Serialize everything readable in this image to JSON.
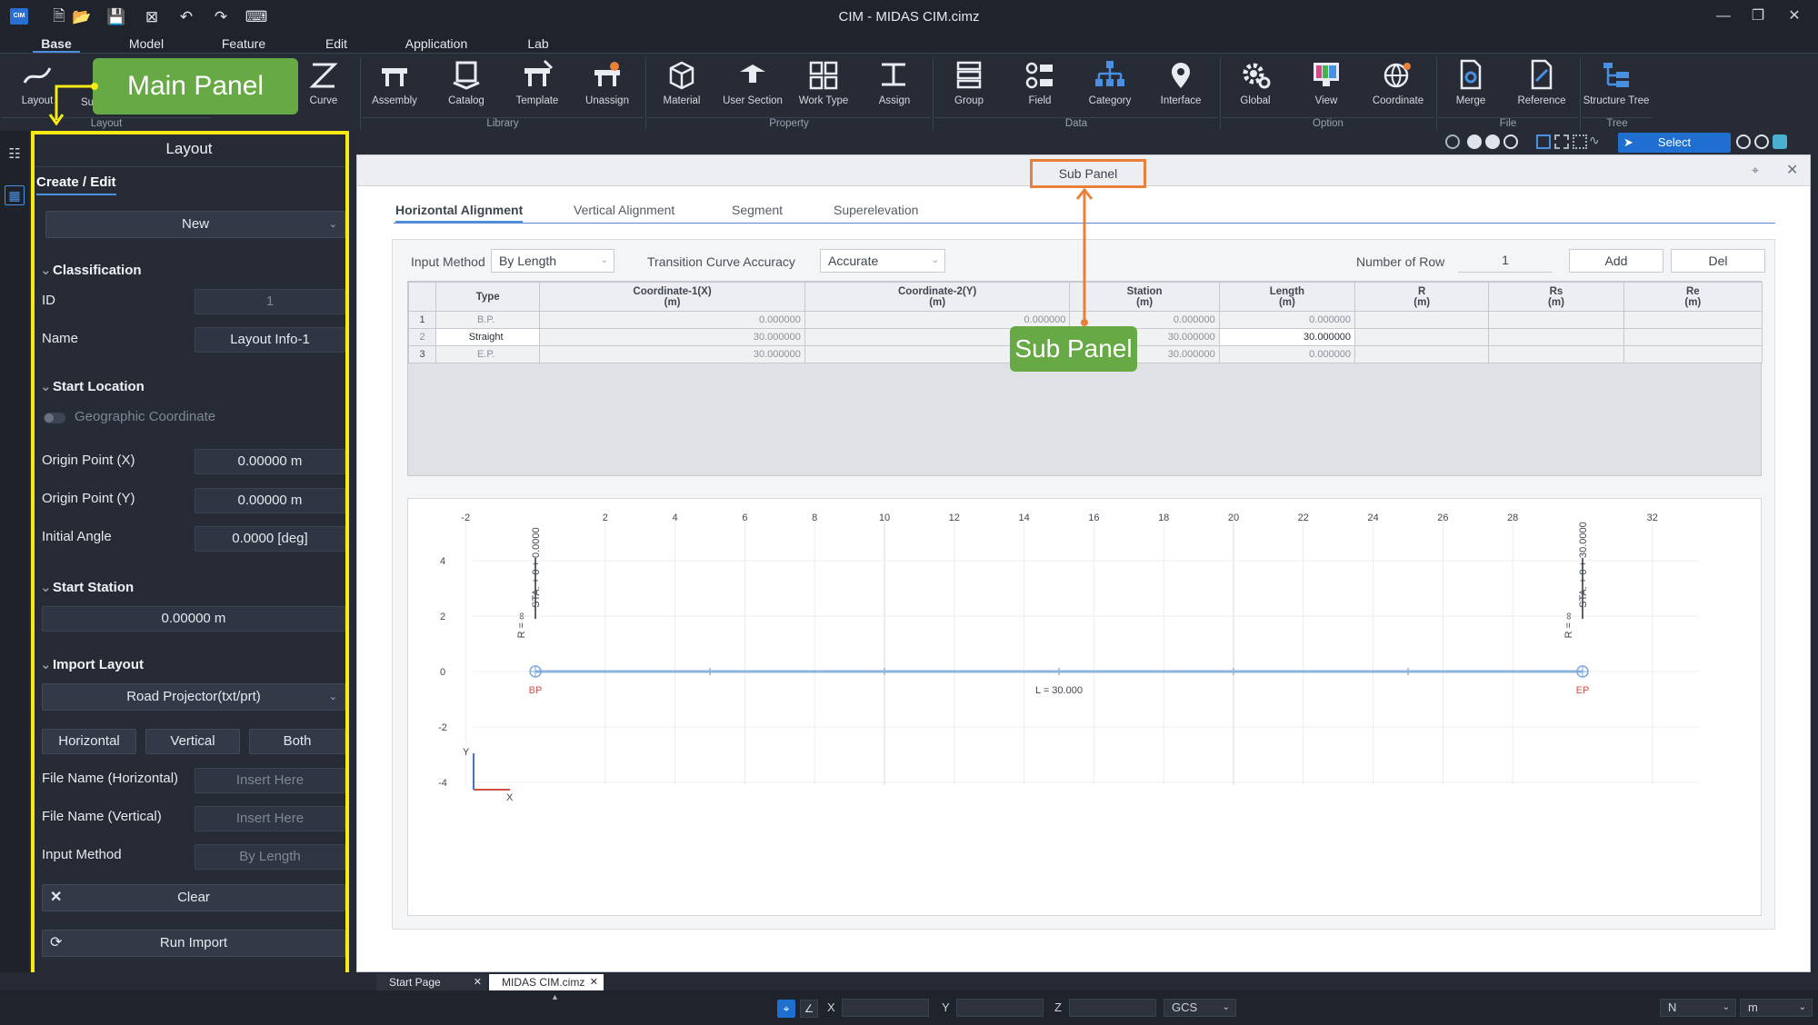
{
  "titlebar": {
    "title": "CIM - MIDAS CIM.cimz",
    "logo": "CIM"
  },
  "menu": [
    "Base",
    "Model",
    "Feature",
    "Edit",
    "Application",
    "Lab"
  ],
  "ribbon": {
    "buttons": [
      "Layout",
      "Su",
      "Curve",
      "Assembly",
      "Catalog",
      "Template",
      "Unassign",
      "Material",
      "User Section",
      "Work Type",
      "Assign",
      "Group",
      "Field",
      "Category",
      "Interface",
      "Global",
      "View",
      "Coordinate",
      "Merge",
      "Reference",
      "Structure Tree"
    ],
    "groups": [
      "Layout",
      "Library",
      "Property",
      "Data",
      "Option",
      "File",
      "Tree"
    ]
  },
  "callouts": {
    "main": "Main Panel",
    "sub": "Sub Panel"
  },
  "main_panel": {
    "title": "Layout",
    "tab": "Create / Edit",
    "new_select": "New",
    "classification": {
      "heading": "Classification",
      "id_label": "ID",
      "id_value": "1",
      "name_label": "Name",
      "name_value": "Layout Info-1"
    },
    "start_location": {
      "heading": "Start Location",
      "geo_label": "Geographic Coordinate",
      "origin_x_label": "Origin Point (X)",
      "origin_x_value": "0.00000 m",
      "origin_y_label": "Origin Point (Y)",
      "origin_y_value": "0.00000 m",
      "angle_label": "Initial Angle",
      "angle_value": "0.0000 [deg]"
    },
    "start_station": {
      "heading": "Start Station",
      "value": "0.00000 m"
    },
    "import_layout": {
      "heading": "Import Layout",
      "source": "Road Projector(txt/prt)",
      "btn_horizontal": "Horizontal",
      "btn_vertical": "Vertical",
      "btn_both": "Both",
      "file_h_label": "File Name (Horizontal)",
      "file_h_placeholder": "Insert Here",
      "file_v_label": "File Name (Vertical)",
      "file_v_placeholder": "Insert Here",
      "method_label": "Input Method",
      "method_value": "By Length",
      "clear": "Clear",
      "run": "Run Import"
    }
  },
  "sub_panel": {
    "title": "Sub Panel",
    "tabs": [
      "Horizontal Alignment",
      "Vertical Alignment",
      "Segment",
      "Superelevation"
    ],
    "input_method_label": "Input Method",
    "input_method_value": "By Length",
    "transition_label": "Transition Curve Accuracy",
    "transition_value": "Accurate",
    "rows_label": "Number of Row",
    "rows_value": "1",
    "add": "Add",
    "del": "Del",
    "columns": [
      {
        "name": "Type",
        "unit": ""
      },
      {
        "name": "Coordinate-1(X)",
        "unit": "(m)"
      },
      {
        "name": "Coordinate-2(Y)",
        "unit": "(m)"
      },
      {
        "name": "Station",
        "unit": "(m)"
      },
      {
        "name": "Length",
        "unit": "(m)"
      },
      {
        "name": "R",
        "unit": "(m)"
      },
      {
        "name": "Rs",
        "unit": "(m)"
      },
      {
        "name": "Re",
        "unit": "(m)"
      }
    ],
    "rows": [
      {
        "n": "1",
        "type": "B.P.",
        "x": "0.000000",
        "y": "0.000000",
        "station": "0.000000",
        "length": "0.000000"
      },
      {
        "n": "2",
        "type": "Straight",
        "x": "30.000000",
        "y": "0.000000",
        "station": "30.000000",
        "length": "30.000000"
      },
      {
        "n": "3",
        "type": "E.P.",
        "x": "30.000000",
        "y": "0.000000",
        "station": "30.000000",
        "length": "0.000000"
      }
    ],
    "plot": {
      "x_ticks": [
        "-2",
        "2",
        "4",
        "6",
        "8",
        "10",
        "12",
        "14",
        "16",
        "18",
        "20",
        "22",
        "24",
        "26",
        "28",
        "32"
      ],
      "y_ticks": [
        "4",
        "2",
        "0",
        "-2",
        "-4"
      ],
      "sta_start": "STA. + 0 + 0.0000",
      "sta_end": "STA. + 0 + 30.0000",
      "r_label": "R = ∞",
      "bp": "BP",
      "ep": "EP",
      "length_label": "L = 30.000",
      "axis_x": "X",
      "axis_y": "Y"
    }
  },
  "subtoolbar": {
    "select": "Select"
  },
  "doc_tabs": [
    "Start Page",
    "MIDAS CIM.cimz"
  ],
  "statusbar": {
    "x_label": "X",
    "y_label": "Y",
    "z_label": "Z",
    "cs": "GCS",
    "dir": "N",
    "unit": "m"
  },
  "colors": {
    "accent": "#4a90e2",
    "callout_green": "#67a944",
    "highlight_yellow": "#f5ea14",
    "subpanel_orange": "#e8803a",
    "bp_red": "#d0504a"
  }
}
